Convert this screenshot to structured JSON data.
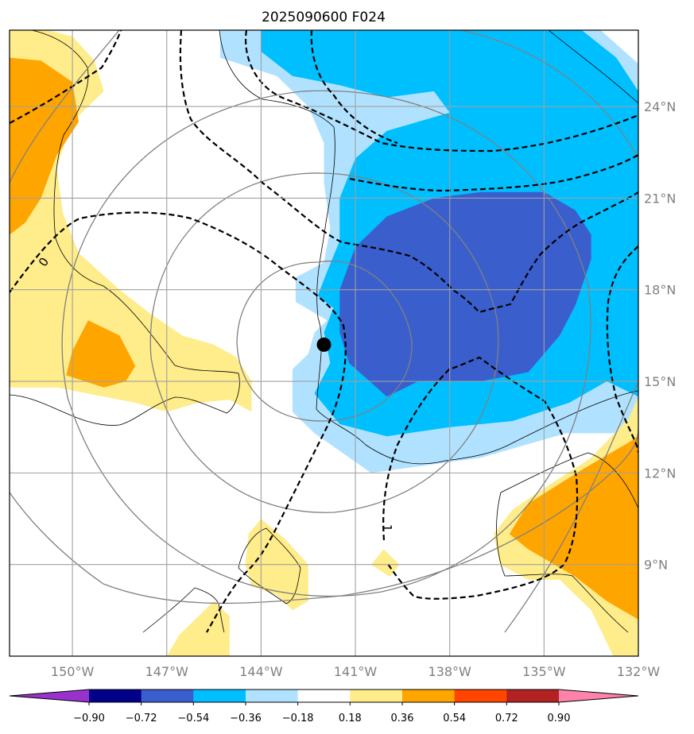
{
  "chart_data": {
    "type": "contour-map",
    "title": "2025090600 F024",
    "x_axis": {
      "ticks": [
        -150,
        -147,
        -144,
        -141,
        -138,
        -135,
        -132
      ],
      "tick_labels": [
        "150°W",
        "147°W",
        "144°W",
        "141°W",
        "138°W",
        "135°W",
        "132°W"
      ],
      "range": [
        -152,
        -132
      ]
    },
    "y_axis": {
      "ticks": [
        9,
        12,
        15,
        18,
        21,
        24
      ],
      "tick_labels": [
        "9°N",
        "12°N",
        "15°N",
        "18°N",
        "21°N",
        "24°N"
      ],
      "range": [
        6,
        26.5
      ]
    },
    "grid": true,
    "storm_center": {
      "lon": -142.0,
      "lat": 16.2
    },
    "colorbar": {
      "boundaries": [
        -0.9,
        -0.72,
        -0.54,
        -0.36,
        -0.18,
        0.18,
        0.36,
        0.54,
        0.72,
        0.9
      ],
      "tick_labels": [
        "−0.90",
        "−0.72",
        "−0.54",
        "−0.36",
        "−0.18",
        "0.18",
        "0.36",
        "0.54",
        "0.72",
        "0.90"
      ],
      "colors": [
        "#9932cc",
        "#00008b",
        "#3a5fcd",
        "#00bfff",
        "#b0e2ff",
        "#ffffff",
        "#ffec8b",
        "#ffa500",
        "#ff4500",
        "#b22222",
        "#ff82ab"
      ],
      "extend": "both"
    },
    "dashed_contour_labels": [
      {
        "text": "0",
        "lon": -150.9,
        "lat": 18.9,
        "rotation": -55
      },
      {
        "text": "1",
        "lon": -140.0,
        "lat": 10.2,
        "rotation": 90
      }
    ],
    "shaded_regions": [
      {
        "level": -0.36,
        "color": "#b0e2ff",
        "points": [
          [
            -145.3,
            26.5
          ],
          [
            -133.2,
            26.5
          ],
          [
            -132,
            25.4
          ],
          [
            -132,
            13.3
          ],
          [
            -134.3,
            13.3
          ],
          [
            -137.0,
            12.5
          ],
          [
            -140.5,
            12.0
          ],
          [
            -142.3,
            13.3
          ],
          [
            -143.0,
            14.0
          ],
          [
            -143.0,
            15.4
          ],
          [
            -142.5,
            15.9
          ],
          [
            -142.3,
            16.6
          ],
          [
            -141.9,
            17.0
          ],
          [
            -142.9,
            17.6
          ],
          [
            -142.9,
            18.4
          ],
          [
            -142.0,
            18.9
          ],
          [
            -141.8,
            20.0
          ],
          [
            -142.0,
            21.5
          ],
          [
            -142.0,
            22.8
          ],
          [
            -142.5,
            24.0
          ],
          [
            -143.5,
            25.0
          ],
          [
            -145.3,
            25.6
          ]
        ]
      },
      {
        "level": -0.54,
        "color": "#00bfff",
        "points": [
          [
            -144.0,
            26.5
          ],
          [
            -133.8,
            26.5
          ],
          [
            -132.7,
            25.6
          ],
          [
            -132.0,
            24.5
          ],
          [
            -132,
            14.5
          ],
          [
            -133.0,
            15.0
          ],
          [
            -134.2,
            14.3
          ],
          [
            -136.0,
            13.7
          ],
          [
            -138.0,
            13.5
          ],
          [
            -140.0,
            13.2
          ],
          [
            -141.5,
            13.6
          ],
          [
            -142.3,
            14.6
          ],
          [
            -141.8,
            15.6
          ],
          [
            -142.0,
            16.6
          ],
          [
            -141.7,
            17.4
          ],
          [
            -142.2,
            17.8
          ],
          [
            -141.9,
            18.6
          ],
          [
            -141.5,
            19.6
          ],
          [
            -141.5,
            21.0
          ],
          [
            -141.0,
            22.3
          ],
          [
            -140.0,
            23.2
          ],
          [
            -139.0,
            23.5
          ],
          [
            -138.0,
            23.8
          ],
          [
            -138.5,
            24.5
          ],
          [
            -140.0,
            24.3
          ],
          [
            -141.5,
            24.7
          ],
          [
            -143.0,
            25.0
          ],
          [
            -144.0,
            25.8
          ]
        ]
      },
      {
        "level": -0.72,
        "color": "#3a5fcd",
        "points": [
          [
            -140.0,
            20.4
          ],
          [
            -138.5,
            21.0
          ],
          [
            -137.0,
            21.2
          ],
          [
            -135.0,
            21.2
          ],
          [
            -134.0,
            20.6
          ],
          [
            -133.5,
            19.8
          ],
          [
            -133.5,
            19.0
          ],
          [
            -134.0,
            17.5
          ],
          [
            -134.5,
            16.5
          ],
          [
            -135.5,
            15.3
          ],
          [
            -137.0,
            15.0
          ],
          [
            -139.0,
            15.0
          ],
          [
            -140.0,
            14.5
          ],
          [
            -141.2,
            15.6
          ],
          [
            -141.5,
            16.6
          ],
          [
            -141.5,
            18.0
          ],
          [
            -141.0,
            19.4
          ]
        ]
      },
      {
        "level": 0.36,
        "color": "#ffec8b",
        "points": [
          [
            -152,
            26.5
          ],
          [
            -150.8,
            26.5
          ],
          [
            -150.0,
            26.3
          ],
          [
            -149.3,
            25.5
          ],
          [
            -149.0,
            24.5
          ],
          [
            -150.0,
            23.5
          ],
          [
            -150.5,
            22.0
          ],
          [
            -150.3,
            20.5
          ],
          [
            -149.8,
            19.2
          ],
          [
            -148.5,
            18.0
          ],
          [
            -147.5,
            17.2
          ],
          [
            -146.5,
            16.5
          ],
          [
            -145.5,
            16.2
          ],
          [
            -144.8,
            15.8
          ],
          [
            -144.3,
            15.0
          ],
          [
            -144.3,
            14.0
          ],
          [
            -145.0,
            14.4
          ],
          [
            -146.0,
            14.3
          ],
          [
            -147.0,
            14.0
          ],
          [
            -148.0,
            14.3
          ],
          [
            -149.0,
            14.5
          ],
          [
            -150.5,
            14.8
          ],
          [
            -152,
            14.8
          ]
        ]
      },
      {
        "level": 0.54,
        "color": "#ffa500",
        "points": [
          [
            -152,
            25.6
          ],
          [
            -151.0,
            25.5
          ],
          [
            -150.0,
            24.8
          ],
          [
            -149.8,
            23.5
          ],
          [
            -150.5,
            22.4
          ],
          [
            -151.0,
            21.0
          ],
          [
            -151.5,
            20.2
          ],
          [
            -152,
            19.8
          ]
        ]
      },
      {
        "level": 0.54,
        "color": "#ffa500",
        "points": [
          [
            -150.0,
            16.0
          ],
          [
            -149.5,
            17.0
          ],
          [
            -148.5,
            16.5
          ],
          [
            -148.0,
            15.5
          ],
          [
            -148.3,
            15.0
          ],
          [
            -149.0,
            14.8
          ],
          [
            -150.2,
            15.2
          ]
        ]
      },
      {
        "level": 0.36,
        "color": "#ffec8b",
        "points": [
          [
            -144.0,
            10.5
          ],
          [
            -143.2,
            9.8
          ],
          [
            -142.5,
            9.0
          ],
          [
            -142.5,
            7.8
          ],
          [
            -143.0,
            7.5
          ],
          [
            -143.5,
            8.0
          ],
          [
            -144.3,
            8.3
          ],
          [
            -144.5,
            9.0
          ],
          [
            -144.4,
            10.0
          ]
        ]
      },
      {
        "level": 0.36,
        "color": "#ffec8b",
        "points": [
          [
            -145.5,
            7.8
          ],
          [
            -145.0,
            7.3
          ],
          [
            -145.0,
            6.0
          ],
          [
            -147.0,
            6.0
          ],
          [
            -146.6,
            6.7
          ]
        ]
      },
      {
        "level": 0.36,
        "color": "#ffec8b",
        "points": [
          [
            -140.1,
            9.5
          ],
          [
            -139.6,
            9.0
          ],
          [
            -139.9,
            8.6
          ],
          [
            -140.5,
            9.0
          ]
        ]
      },
      {
        "level": 0.36,
        "color": "#ffec8b",
        "points": [
          [
            -136.0,
            10.8
          ],
          [
            -135.0,
            11.5
          ],
          [
            -133.5,
            12.5
          ],
          [
            -132.3,
            13.8
          ],
          [
            -132,
            14.5
          ],
          [
            -132,
            6
          ],
          [
            -132.8,
            6
          ],
          [
            -133.5,
            7.5
          ],
          [
            -134.5,
            8.5
          ],
          [
            -135.5,
            8.5
          ],
          [
            -136.4,
            9.0
          ],
          [
            -136.6,
            10.0
          ]
        ]
      },
      {
        "level": 0.54,
        "color": "#ffa500",
        "points": [
          [
            -135.5,
            11.0
          ],
          [
            -133.8,
            12.1
          ],
          [
            -132.3,
            13.0
          ],
          [
            -132,
            13.2
          ],
          [
            -132,
            7.2
          ],
          [
            -133.0,
            7.8
          ],
          [
            -134.0,
            8.6
          ],
          [
            -135.5,
            9.5
          ],
          [
            -136.1,
            10.0
          ]
        ]
      }
    ]
  }
}
